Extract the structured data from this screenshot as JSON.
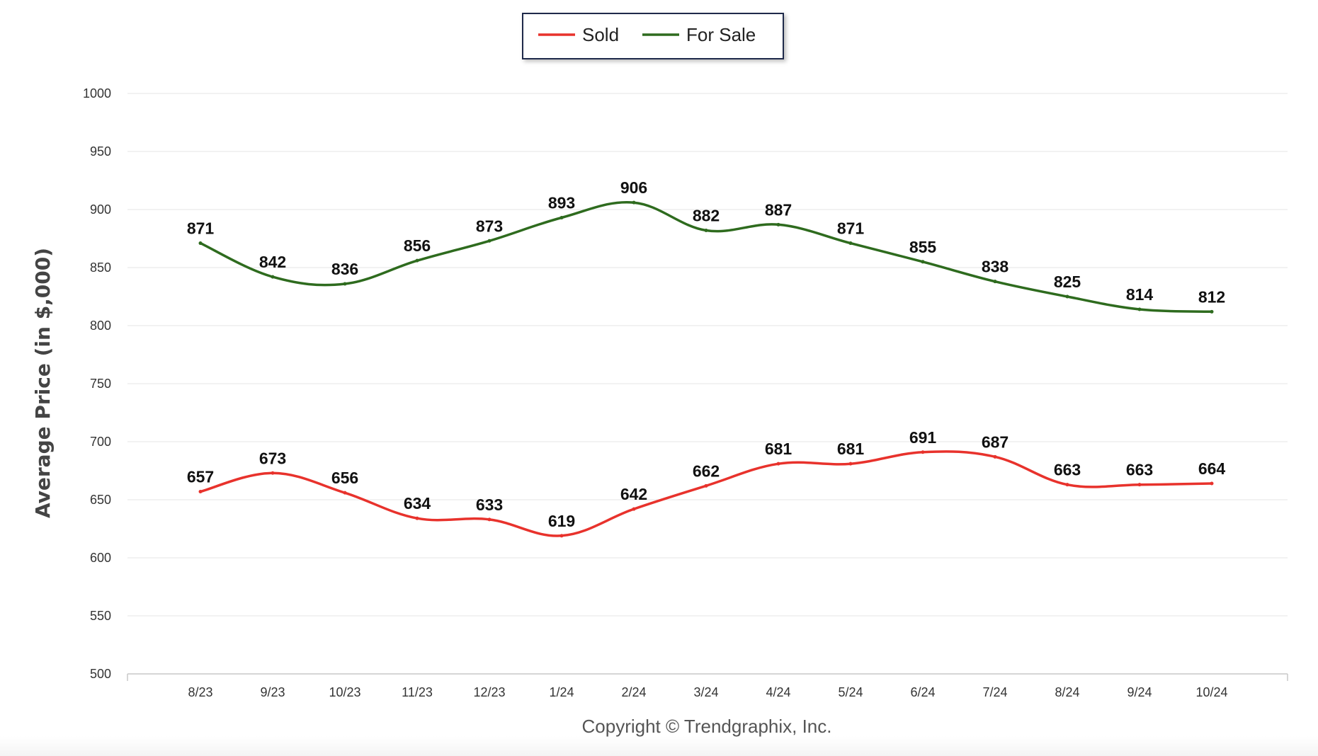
{
  "chart_data": {
    "type": "line",
    "title": "",
    "xlabel": "",
    "ylabel": "Average Price (in $,000)",
    "categories": [
      "8/23",
      "9/23",
      "10/23",
      "11/23",
      "12/23",
      "1/24",
      "2/24",
      "3/24",
      "4/24",
      "5/24",
      "6/24",
      "7/24",
      "8/24",
      "9/24",
      "10/24"
    ],
    "ylim": [
      500,
      1000
    ],
    "yticks": [
      500,
      550,
      600,
      650,
      700,
      750,
      800,
      850,
      900,
      950,
      1000
    ],
    "grid": true,
    "legend": "top-center",
    "series": [
      {
        "name": "Sold",
        "color": "#e8322c",
        "values": [
          657,
          673,
          656,
          634,
          633,
          619,
          642,
          662,
          681,
          681,
          691,
          687,
          663,
          663,
          664
        ]
      },
      {
        "name": "For Sale",
        "color": "#2e6b1e",
        "values": [
          871,
          842,
          836,
          856,
          873,
          893,
          906,
          882,
          887,
          871,
          855,
          838,
          825,
          814,
          812
        ]
      }
    ],
    "credit": "Copyright © Trendgraphix, Inc."
  }
}
